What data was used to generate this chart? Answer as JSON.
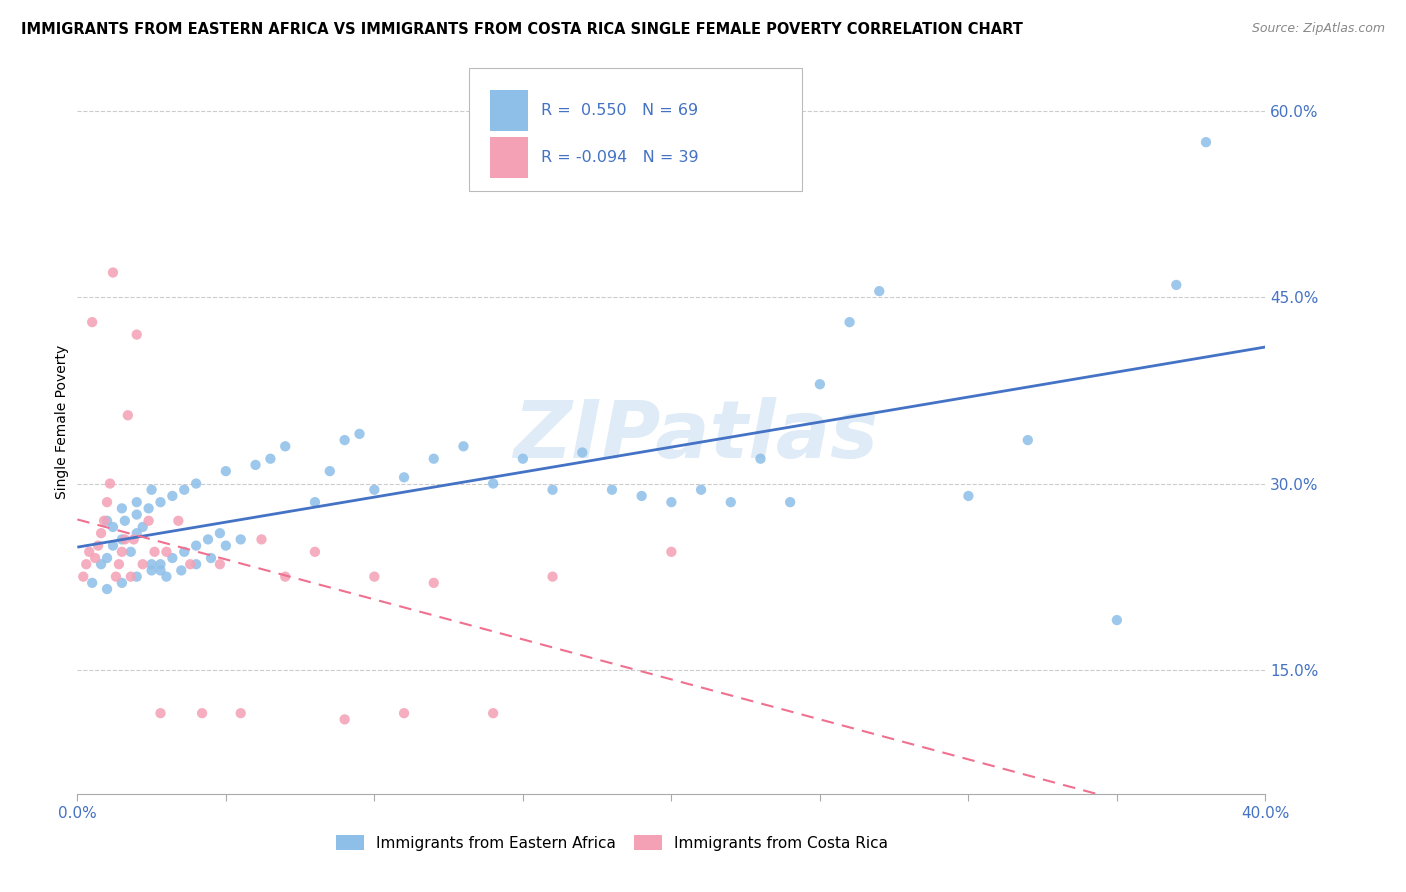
{
  "title": "IMMIGRANTS FROM EASTERN AFRICA VS IMMIGRANTS FROM COSTA RICA SINGLE FEMALE POVERTY CORRELATION CHART",
  "source": "Source: ZipAtlas.com",
  "ylabel": "Single Female Poverty",
  "xlim": [
    0.0,
    0.4
  ],
  "ylim": [
    0.05,
    0.65
  ],
  "ytick_values": [
    0.15,
    0.3,
    0.45,
    0.6
  ],
  "ytick_labels": [
    "15.0%",
    "30.0%",
    "45.0%",
    "60.0%"
  ],
  "xtick_positions": [
    0.0,
    0.05,
    0.1,
    0.15,
    0.2,
    0.25,
    0.3,
    0.35,
    0.4
  ],
  "xtick_labels": [
    "0.0%",
    "",
    "",
    "",
    "",
    "",
    "",
    "",
    "40.0%"
  ],
  "color_eastern": "#8DBFE8",
  "color_costa": "#F4A0B5",
  "line_color_eastern": "#4472C4",
  "line_color_costa": "#F07090",
  "R_eastern": 0.55,
  "N_eastern": 69,
  "R_costa": -0.094,
  "N_costa": 39,
  "eastern_africa_x": [
    0.005,
    0.008,
    0.01,
    0.012,
    0.015,
    0.018,
    0.02,
    0.022,
    0.025,
    0.028,
    0.01,
    0.015,
    0.02,
    0.025,
    0.03,
    0.035,
    0.04,
    0.045,
    0.05,
    0.055,
    0.01,
    0.015,
    0.02,
    0.025,
    0.028,
    0.032,
    0.036,
    0.04,
    0.044,
    0.048,
    0.012,
    0.016,
    0.02,
    0.024,
    0.028,
    0.032,
    0.036,
    0.04,
    0.05,
    0.06,
    0.065,
    0.07,
    0.08,
    0.085,
    0.09,
    0.095,
    0.1,
    0.11,
    0.12,
    0.13,
    0.14,
    0.15,
    0.16,
    0.17,
    0.18,
    0.19,
    0.2,
    0.21,
    0.22,
    0.23,
    0.24,
    0.25,
    0.26,
    0.27,
    0.3,
    0.32,
    0.35,
    0.37,
    0.38
  ],
  "eastern_africa_y": [
    0.22,
    0.235,
    0.24,
    0.25,
    0.255,
    0.245,
    0.26,
    0.265,
    0.235,
    0.23,
    0.27,
    0.28,
    0.285,
    0.295,
    0.225,
    0.23,
    0.235,
    0.24,
    0.25,
    0.255,
    0.215,
    0.22,
    0.225,
    0.23,
    0.235,
    0.24,
    0.245,
    0.25,
    0.255,
    0.26,
    0.265,
    0.27,
    0.275,
    0.28,
    0.285,
    0.29,
    0.295,
    0.3,
    0.31,
    0.315,
    0.32,
    0.33,
    0.285,
    0.31,
    0.335,
    0.34,
    0.295,
    0.305,
    0.32,
    0.33,
    0.3,
    0.32,
    0.295,
    0.325,
    0.295,
    0.29,
    0.285,
    0.295,
    0.285,
    0.32,
    0.285,
    0.38,
    0.43,
    0.455,
    0.29,
    0.335,
    0.19,
    0.46,
    0.575
  ],
  "costa_rica_x": [
    0.002,
    0.003,
    0.004,
    0.005,
    0.006,
    0.007,
    0.008,
    0.009,
    0.01,
    0.011,
    0.012,
    0.013,
    0.014,
    0.015,
    0.016,
    0.017,
    0.018,
    0.019,
    0.02,
    0.022,
    0.024,
    0.026,
    0.028,
    0.03,
    0.034,
    0.038,
    0.042,
    0.048,
    0.055,
    0.062,
    0.07,
    0.08,
    0.09,
    0.1,
    0.11,
    0.12,
    0.14,
    0.16,
    0.2
  ],
  "costa_rica_y": [
    0.225,
    0.235,
    0.245,
    0.43,
    0.24,
    0.25,
    0.26,
    0.27,
    0.285,
    0.3,
    0.47,
    0.225,
    0.235,
    0.245,
    0.255,
    0.355,
    0.225,
    0.255,
    0.42,
    0.235,
    0.27,
    0.245,
    0.115,
    0.245,
    0.27,
    0.235,
    0.115,
    0.235,
    0.115,
    0.255,
    0.225,
    0.245,
    0.11,
    0.225,
    0.115,
    0.22,
    0.115,
    0.225,
    0.245
  ]
}
